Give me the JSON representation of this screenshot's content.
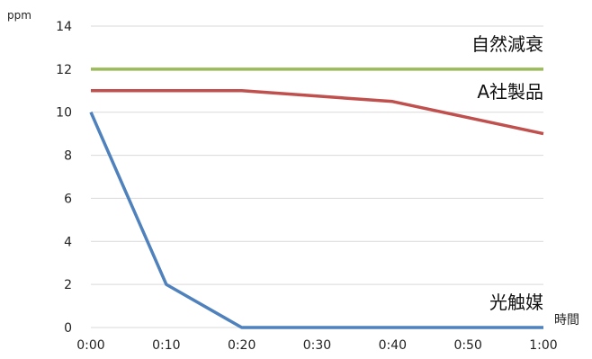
{
  "chart_data": {
    "type": "line",
    "y_unit": "ppm",
    "x_unit": "時間",
    "x": [
      "0:00",
      "0:10",
      "0:20",
      "0:30",
      "0:40",
      "0:50",
      "1:00"
    ],
    "ylim": [
      0,
      14
    ],
    "yticks": [
      0,
      2,
      4,
      6,
      8,
      10,
      12,
      14
    ],
    "grid": true,
    "series": [
      {
        "name": "自然減衰",
        "color": "#9bbb59",
        "values": [
          12,
          12,
          12,
          12,
          12,
          12,
          12
        ]
      },
      {
        "name": "A社製品",
        "color": "#c0504d",
        "values": [
          11,
          11,
          11,
          10.75,
          10.5,
          9.75,
          9
        ]
      },
      {
        "name": "光触媒",
        "color": "#4f81bd",
        "values": [
          10,
          2,
          0,
          0,
          0,
          0,
          0
        ]
      }
    ]
  }
}
